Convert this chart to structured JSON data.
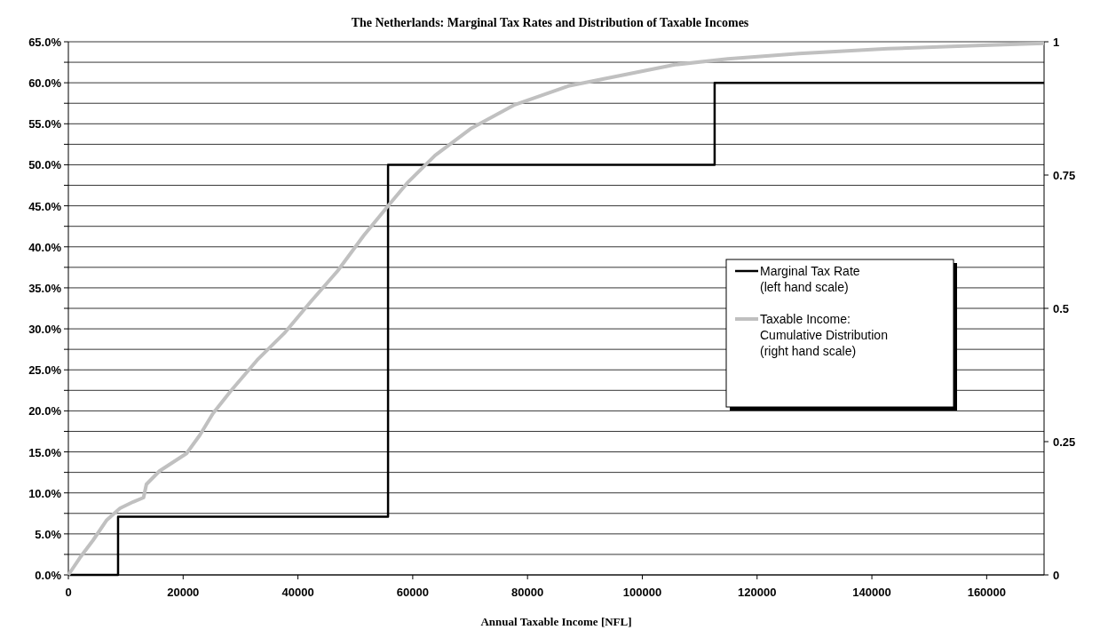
{
  "chart_data": {
    "type": "line",
    "title": "The Netherlands: Marginal Tax Rates and Distribution of Taxable Incomes",
    "xlabel": "Annual Taxable Income [NFL]",
    "xlim": [
      0,
      170000
    ],
    "xticks": [
      0,
      20000,
      40000,
      60000,
      80000,
      100000,
      120000,
      140000,
      160000
    ],
    "ylim": [
      0,
      65
    ],
    "yticks": [
      {
        "value": 0,
        "label": "0.0%"
      },
      {
        "value": 2.5,
        "label": null
      },
      {
        "value": 5,
        "label": "5.0%"
      },
      {
        "value": 7.5,
        "label": null
      },
      {
        "value": 10,
        "label": "10.0%"
      },
      {
        "value": 12.5,
        "label": null
      },
      {
        "value": 15,
        "label": "15.0%"
      },
      {
        "value": 17.5,
        "label": null
      },
      {
        "value": 20,
        "label": "20.0%"
      },
      {
        "value": 22.5,
        "label": null
      },
      {
        "value": 25,
        "label": "25.0%"
      },
      {
        "value": 27.5,
        "label": null
      },
      {
        "value": 30,
        "label": "30.0%"
      },
      {
        "value": 32.5,
        "label": null
      },
      {
        "value": 35,
        "label": "35.0%"
      },
      {
        "value": 37.5,
        "label": null
      },
      {
        "value": 40,
        "label": "40.0%"
      },
      {
        "value": 42.5,
        "label": null
      },
      {
        "value": 45,
        "label": "45.0%"
      },
      {
        "value": 47.5,
        "label": null
      },
      {
        "value": 50,
        "label": "50.0%"
      },
      {
        "value": 52.5,
        "label": null
      },
      {
        "value": 55,
        "label": "55.0%"
      },
      {
        "value": 57.5,
        "label": null
      },
      {
        "value": 60,
        "label": "60.0%"
      },
      {
        "value": 62.5,
        "label": null
      },
      {
        "value": 65,
        "label": "65.0%"
      }
    ],
    "y2lim": [
      0,
      1
    ],
    "y2ticks": [
      0,
      0.25,
      0.5,
      0.75,
      1
    ],
    "grid": "y",
    "legend": "right",
    "series": [
      {
        "name": "Marginal Tax Rate\n(left hand scale)",
        "type": "step",
        "color": "#000000",
        "x": [
          0,
          8660,
          55700,
          112600,
          170000
        ],
        "values": [
          0,
          7.1,
          50,
          60,
          60
        ]
      },
      {
        "name": "Taxable Income:\nCumulative Distribution\n(right hand scale)",
        "axis": "y2",
        "color": "#c0c0c0",
        "x": [
          0,
          2000,
          4300,
          6700,
          9000,
          11300,
          13100,
          13600,
          15900,
          20600,
          22900,
          25200,
          28300,
          32900,
          37600,
          42200,
          46900,
          51500,
          55700,
          59200,
          63900,
          70100,
          77800,
          87100,
          96400,
          105700,
          114900,
          127300,
          142800,
          158200,
          170000
        ],
        "values": [
          0,
          0.032,
          0.065,
          0.103,
          0.125,
          0.137,
          0.145,
          0.17,
          0.195,
          0.228,
          0.262,
          0.303,
          0.345,
          0.403,
          0.453,
          0.512,
          0.57,
          0.637,
          0.692,
          0.737,
          0.787,
          0.837,
          0.882,
          0.917,
          0.937,
          0.957,
          0.968,
          0.978,
          0.987,
          0.993,
          0.997
        ]
      }
    ]
  }
}
